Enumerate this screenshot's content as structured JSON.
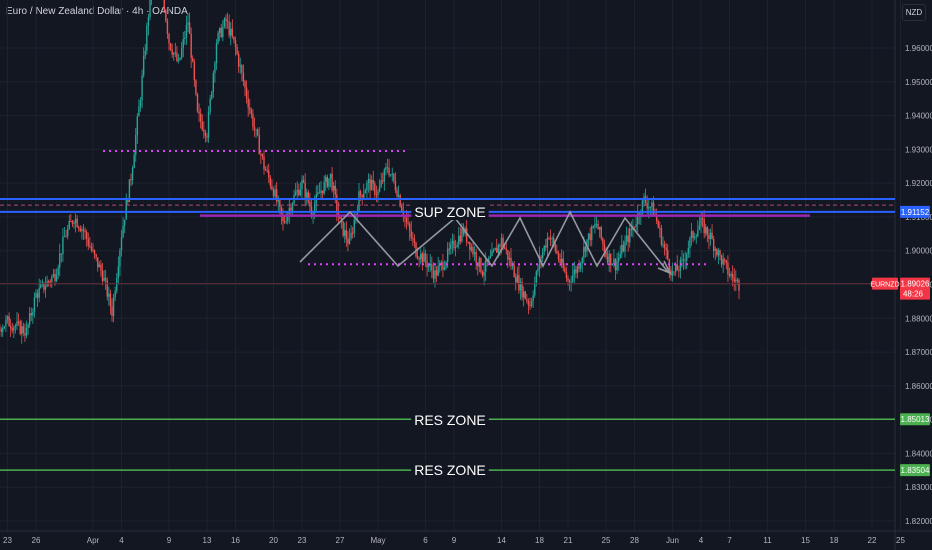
{
  "header": {
    "title": "Euro / New Zealand Dollar · 4h · OANDA"
  },
  "unit_label": "NZD",
  "symbol_tag": {
    "ticker": "EURNZD",
    "price": "1.89026",
    "countdown": "48:26",
    "color": "#f23645"
  },
  "price_tags": [
    {
      "label": "1.91152",
      "color": "#2962ff"
    },
    {
      "label": "1.85013",
      "color": "#4caf50"
    },
    {
      "label": "1.83504",
      "color": "#4caf50"
    }
  ],
  "annotations": {
    "sup_zone": "SUP ZONE",
    "res_zone_1": "RES ZONE",
    "res_zone_2": "RES ZONE"
  },
  "colors": {
    "background": "#131722",
    "grid": "#1e222d",
    "up_candle": "#26a69a",
    "down_candle": "#ef5350",
    "sup_line": "#2962ff",
    "res_line": "#4caf50",
    "dotted": "#e040fb",
    "projection": "#9598a1",
    "text": "#b2b5be"
  },
  "chart_data": {
    "type": "candlestick",
    "title": "Euro / New Zealand Dollar · 4h · OANDA",
    "ylim": [
      1.815,
      1.985
    ],
    "y_ticks": [
      "1.96000",
      "1.95000",
      "1.94000",
      "1.93000",
      "1.92000",
      "1.91000",
      "1.90000",
      "1.89000",
      "1.88000",
      "1.87000",
      "1.86000",
      "1.85000",
      "1.84000",
      "1.83000",
      "1.82000"
    ],
    "y_tick_values": [
      1.96,
      1.95,
      1.94,
      1.93,
      1.92,
      1.91,
      1.9,
      1.89,
      1.88,
      1.87,
      1.86,
      1.85,
      1.84,
      1.83,
      1.82
    ],
    "x_labels": [
      "23",
      "26",
      "Apr",
      "4",
      "9",
      "13",
      "16",
      "20",
      "23",
      "27",
      "May",
      "6",
      "9",
      "14",
      "18",
      "21",
      "25",
      "28",
      "Jun",
      "4",
      "7",
      "11",
      "15",
      "18",
      "22",
      "25"
    ],
    "x_label_days": [
      -9,
      -6,
      0,
      3,
      8,
      12,
      15,
      19,
      22,
      26,
      30,
      35,
      38,
      43,
      47,
      50,
      54,
      57,
      61,
      64,
      67,
      71,
      75,
      78,
      82,
      85
    ],
    "price_path": [
      [
        -22,
        1.885
      ],
      [
        -20,
        1.892
      ],
      [
        -18,
        1.888
      ],
      [
        -17,
        1.894
      ],
      [
        -15,
        1.889
      ],
      [
        -13,
        1.882
      ],
      [
        -11,
        1.875
      ],
      [
        -9,
        1.879
      ],
      [
        -7,
        1.876
      ],
      [
        -6,
        1.887
      ],
      [
        -4,
        1.893
      ],
      [
        -3,
        1.904
      ],
      [
        -2,
        1.91
      ],
      [
        -1,
        1.906
      ],
      [
        0,
        1.899
      ],
      [
        1,
        1.893
      ],
      [
        2,
        1.882
      ],
      [
        3,
        1.905
      ],
      [
        4,
        1.922
      ],
      [
        5,
        1.946
      ],
      [
        6,
        1.975
      ],
      [
        7,
        1.983
      ],
      [
        8,
        1.962
      ],
      [
        9,
        1.955
      ],
      [
        10,
        1.968
      ],
      [
        11,
        1.94
      ],
      [
        12,
        1.935
      ],
      [
        13,
        1.962
      ],
      [
        14,
        1.968
      ],
      [
        15,
        1.96
      ],
      [
        16,
        1.948
      ],
      [
        17,
        1.936
      ],
      [
        18,
        1.925
      ],
      [
        19,
        1.918
      ],
      [
        20,
        1.908
      ],
      [
        21,
        1.915
      ],
      [
        22,
        1.92
      ],
      [
        23,
        1.912
      ],
      [
        24,
        1.918
      ],
      [
        25,
        1.922
      ],
      [
        26,
        1.908
      ],
      [
        27,
        1.902
      ],
      [
        28,
        1.916
      ],
      [
        29,
        1.92
      ],
      [
        30,
        1.917
      ],
      [
        31,
        1.925
      ],
      [
        32,
        1.918
      ],
      [
        33,
        1.908
      ],
      [
        34,
        1.9
      ],
      [
        35,
        1.897
      ],
      [
        36,
        1.893
      ],
      [
        37,
        1.897
      ],
      [
        38,
        1.902
      ],
      [
        39,
        1.906
      ],
      [
        40,
        1.9
      ],
      [
        41,
        1.894
      ],
      [
        42,
        1.898
      ],
      [
        43,
        1.903
      ],
      [
        44,
        1.896
      ],
      [
        45,
        1.889
      ],
      [
        46,
        1.884
      ],
      [
        47,
        1.897
      ],
      [
        48,
        1.905
      ],
      [
        49,
        1.898
      ],
      [
        50,
        1.891
      ],
      [
        51,
        1.895
      ],
      [
        52,
        1.903
      ],
      [
        53,
        1.908
      ],
      [
        54,
        1.899
      ],
      [
        55,
        1.896
      ],
      [
        56,
        1.902
      ],
      [
        57,
        1.908
      ],
      [
        58,
        1.915
      ],
      [
        59,
        1.912
      ],
      [
        60,
        1.902
      ],
      [
        61,
        1.893
      ],
      [
        62,
        1.896
      ],
      [
        63,
        1.904
      ],
      [
        64,
        1.908
      ],
      [
        65,
        1.904
      ],
      [
        66,
        1.898
      ],
      [
        67,
        1.893
      ],
      [
        68,
        1.89
      ]
    ],
    "levels": [
      {
        "name": "SUP ZONE upper",
        "value": 1.9115
      },
      {
        "name": "SUP ZONE lower",
        "value": 1.9153
      },
      {
        "name": "RES ZONE",
        "value": 1.85013
      },
      {
        "name": "RES ZONE",
        "value": 1.83504
      }
    ],
    "current_price": 1.89026
  }
}
